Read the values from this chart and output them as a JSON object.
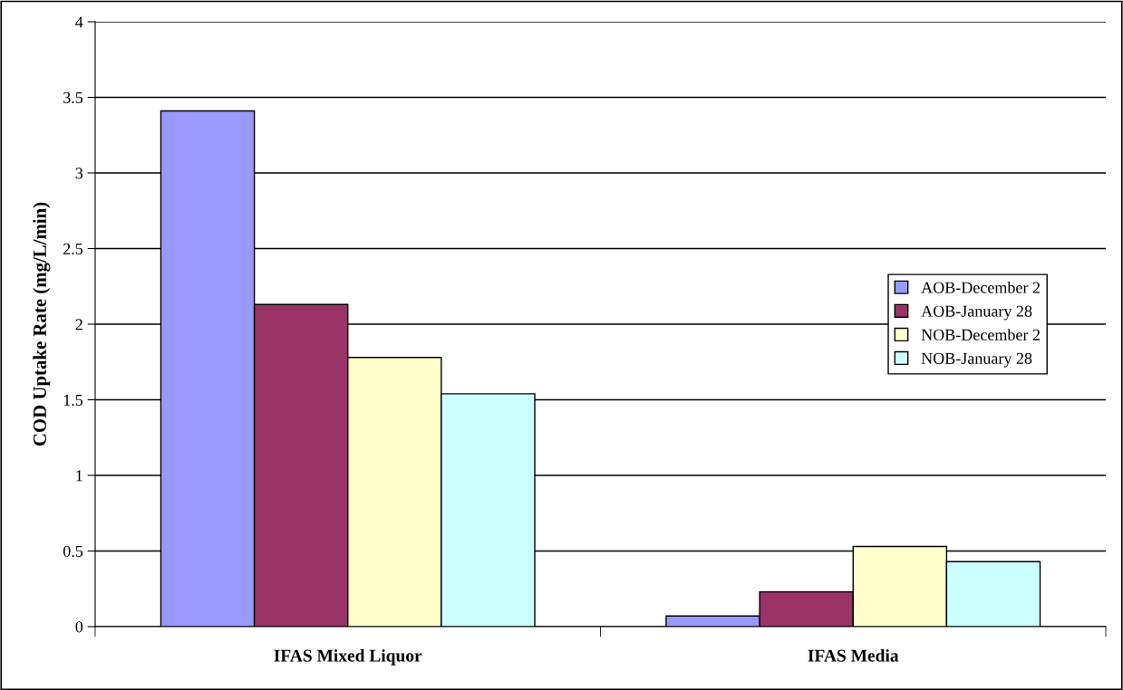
{
  "chart_data": {
    "type": "bar",
    "ylabel": "COD Uptake Rate (mg/L/min)",
    "categories": [
      "IFAS Mixed Liquor",
      "IFAS Media"
    ],
    "series": [
      {
        "name": "AOB-December 2",
        "color": "#9999ff",
        "values": [
          3.41,
          0.07
        ]
      },
      {
        "name": "AOB-January 28",
        "color": "#993366",
        "values": [
          2.13,
          0.23
        ]
      },
      {
        "name": "NOB-December 2",
        "color": "#ffffcc",
        "values": [
          1.78,
          0.53
        ]
      },
      {
        "name": "NOB-January 28",
        "color": "#ccffff",
        "values": [
          1.54,
          0.43
        ]
      }
    ],
    "ylim": [
      0,
      4
    ],
    "yticks": [
      0,
      0.5,
      1,
      1.5,
      2,
      2.5,
      3,
      3.5,
      4
    ],
    "grid": "y",
    "legend": "right"
  }
}
